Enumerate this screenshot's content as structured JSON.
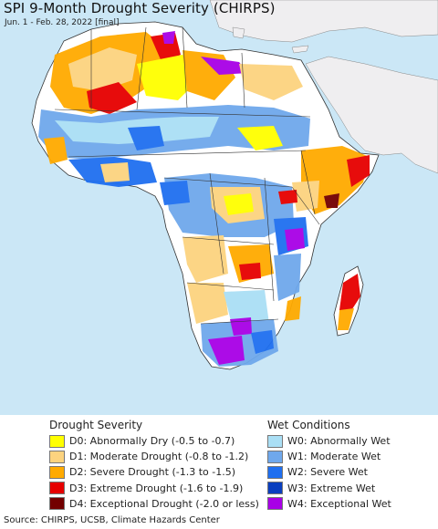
{
  "header": {
    "title": "SPI 9-Month Drought Severity (CHIRPS)",
    "subtitle": "Jun. 1 - Feb. 28, 2022 [final]"
  },
  "map": {
    "region": "Africa",
    "colors": {
      "water": "#cbe7f6",
      "nodata_land": "#ffffff",
      "non_africa_land": "#efeef0",
      "border": "#333333"
    }
  },
  "legend": {
    "drought": {
      "heading": "Drought Severity",
      "items": [
        {
          "code": "D0",
          "label": "D0: Abnormally Dry (-0.5 to -0.7)",
          "color": "#ffff00"
        },
        {
          "code": "D1",
          "label": "D1: Moderate Drought (-0.8 to -1.2)",
          "color": "#fcd37f"
        },
        {
          "code": "D2",
          "label": "D2: Severe Drought (-1.3 to -1.5)",
          "color": "#ffaa00"
        },
        {
          "code": "D3",
          "label": "D3: Extreme Drought (-1.6 to -1.9)",
          "color": "#e60000"
        },
        {
          "code": "D4",
          "label": "D4: Exceptional Drought (-2.0 or less)",
          "color": "#730000"
        }
      ]
    },
    "wet": {
      "heading": "Wet Conditions",
      "items": [
        {
          "code": "W0",
          "label": "W0: Abnormally Wet",
          "color": "#aadff5"
        },
        {
          "code": "W1",
          "label": "W1: Moderate Wet",
          "color": "#6fa8ec"
        },
        {
          "code": "W2",
          "label": "W2: Severe Wet",
          "color": "#1f6ff0"
        },
        {
          "code": "W3",
          "label": "W3: Extreme Wet",
          "color": "#0a3fbf"
        },
        {
          "code": "W4",
          "label": "W4: Exceptional Wet",
          "color": "#a800e6"
        }
      ]
    }
  },
  "footer": {
    "source": "Source: CHIRPS, UCSB, Climate Hazards Center"
  }
}
